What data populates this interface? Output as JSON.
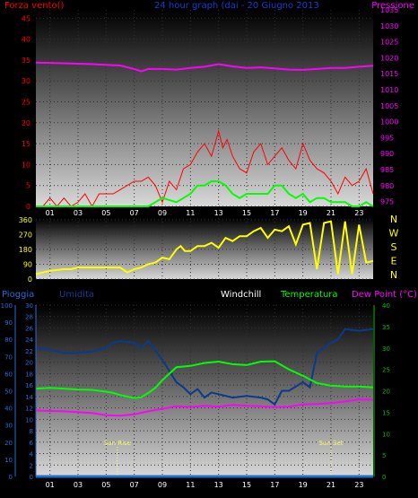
{
  "colors": {
    "wind": "#ff0000",
    "gust": "#ff0000",
    "windAvg": "#00ff00",
    "pressure": "#ff00ff",
    "direction": "#ffff00",
    "rain": "#1e6fd0",
    "humidity": "#0a3a8a",
    "windchill": "#ffffff",
    "temperature": "#00ff00",
    "dewpoint": "#ff00ff",
    "axisBlue": "#2a6bd6",
    "axisGreen": "#00c000",
    "grid": "#303030"
  },
  "chart_data": [
    {
      "type": "line",
      "title": "24 hour graph (dai - 20 Giugno 2013",
      "left_label": "Forza vento()",
      "right_label": "Pressione",
      "x_ticks": [
        "01",
        "03",
        "05",
        "07",
        "09",
        "11",
        "13",
        "15",
        "17",
        "19",
        "21",
        "23"
      ],
      "xlim": [
        0,
        24
      ],
      "y_left_ticks": [
        0,
        5,
        10,
        15,
        20,
        25,
        30,
        35,
        40,
        45
      ],
      "y_left_lim": [
        0,
        47
      ],
      "y_right_ticks": [
        975,
        980,
        985,
        990,
        995,
        1000,
        1005,
        1010,
        1015,
        1020,
        1025,
        1030,
        1035
      ],
      "y_right_lim": [
        973.5,
        1035
      ],
      "series": [
        {
          "role": "gust",
          "x": [
            0.5,
            1,
            1.5,
            2,
            2.5,
            3,
            3.5,
            4,
            4.5,
            5,
            5.5,
            6,
            6.5,
            7,
            7.5,
            8,
            8.5,
            9,
            9.5,
            10,
            10.5,
            11,
            11.5,
            12,
            12.5,
            13,
            13.3,
            13.6,
            14,
            14.5,
            15,
            15.5,
            16,
            16.5,
            17,
            17.5,
            18,
            18.5,
            19,
            19.5,
            20,
            20.5,
            21,
            21.5,
            22,
            22.5,
            23,
            23.5,
            24
          ],
          "y": [
            0,
            2,
            0,
            2,
            0,
            1,
            3,
            0,
            3,
            3,
            3,
            4,
            5,
            6,
            6,
            7,
            5,
            1,
            6,
            4,
            9,
            10,
            13,
            15,
            12,
            18,
            14,
            16,
            12,
            9,
            8,
            13,
            15,
            10,
            12,
            14,
            11,
            9,
            15,
            11,
            9,
            8,
            6,
            3,
            7,
            5,
            6,
            9,
            3
          ]
        },
        {
          "role": "wind-average",
          "x": [
            0,
            6,
            7,
            8,
            9,
            10,
            10.5,
            11,
            11.5,
            12,
            12.5,
            13,
            13.5,
            14,
            14.5,
            15,
            15.5,
            16,
            16.5,
            17,
            17.5,
            18,
            18.5,
            19,
            19.5,
            20,
            20.5,
            21,
            21.5,
            22,
            22.5,
            23,
            23.5,
            24
          ],
          "y": [
            0,
            0,
            0,
            0,
            2,
            1,
            2,
            3,
            5,
            5,
            6,
            6,
            5,
            3,
            2,
            3,
            3,
            3,
            3,
            5,
            5,
            3,
            2,
            3,
            1,
            2,
            2,
            1,
            1,
            1,
            0,
            0,
            1,
            0
          ]
        },
        {
          "role": "pressure",
          "x": [
            0,
            2,
            4,
            6,
            7,
            7.5,
            8,
            9,
            10,
            11,
            12,
            13,
            14,
            15,
            16,
            17,
            18,
            19,
            20,
            21,
            22,
            23,
            24
          ],
          "y": [
            1018.5,
            1018.3,
            1018.0,
            1017.6,
            1016.5,
            1015.8,
            1016.5,
            1016.5,
            1016.3,
            1016.8,
            1017.2,
            1018.0,
            1017.3,
            1016.8,
            1017.0,
            1016.7,
            1016.3,
            1016.2,
            1016.5,
            1016.8,
            1016.8,
            1017.2,
            1017.5
          ]
        }
      ]
    },
    {
      "type": "line",
      "x_ticks": [
        "01",
        "03",
        "05",
        "07",
        "09",
        "11",
        "13",
        "15",
        "17",
        "19",
        "21",
        "23"
      ],
      "xlim": [
        0,
        24
      ],
      "y_left_ticks": [
        0,
        90,
        180,
        270,
        360
      ],
      "y_left_lim": [
        0,
        370
      ],
      "y_right_ticks": [
        "N",
        "W",
        "S",
        "E",
        "N"
      ],
      "series": [
        {
          "role": "direction",
          "x": [
            0,
            1,
            2,
            2.5,
            3,
            4,
            5,
            6,
            6.5,
            7,
            7.5,
            8,
            8.5,
            9,
            9.5,
            10,
            10.3,
            10.6,
            11,
            11.5,
            12,
            12.5,
            13,
            13.5,
            14,
            14.5,
            15,
            15.5,
            16,
            16.5,
            17,
            17.5,
            18,
            18.5,
            19,
            19.5,
            20,
            20.5,
            21,
            21.5,
            22,
            22.5,
            23,
            23.5,
            24
          ],
          "y": [
            30,
            50,
            60,
            60,
            70,
            70,
            70,
            70,
            40,
            60,
            70,
            90,
            100,
            130,
            120,
            180,
            200,
            170,
            170,
            200,
            200,
            220,
            190,
            250,
            230,
            260,
            260,
            290,
            310,
            250,
            300,
            290,
            320,
            210,
            330,
            340,
            60,
            340,
            350,
            30,
            350,
            30,
            330,
            100,
            110
          ]
        }
      ]
    },
    {
      "type": "line",
      "labels": [
        "Pioggia",
        "Umidita",
        "Windchill",
        "Temperatura",
        "Dew Point (°C)"
      ],
      "x_ticks": [
        "01",
        "03",
        "05",
        "07",
        "09",
        "11",
        "13",
        "15",
        "17",
        "19",
        "21",
        "23"
      ],
      "xlim": [
        0,
        24
      ],
      "y_rain_ticks": [
        0,
        10,
        20,
        30,
        40,
        50,
        60,
        70,
        80,
        90,
        100
      ],
      "y_rain_lim": [
        0,
        100
      ],
      "y_hum_ticks": [
        0,
        2,
        4,
        6,
        8,
        10,
        12,
        14,
        16,
        18,
        20,
        22,
        24,
        26,
        28,
        30
      ],
      "y_hum_lim": [
        0,
        30
      ],
      "y_temp_ticks": [
        0,
        5,
        10,
        15,
        20,
        25,
        30,
        35,
        40
      ],
      "y_temp_lim": [
        0,
        40
      ],
      "annotations": [
        {
          "label": "Sun Rise",
          "x": 5.8
        },
        {
          "label": "Sun Set",
          "x": 21.0
        }
      ],
      "series": [
        {
          "role": "rain",
          "x": [
            0,
            24
          ],
          "y": [
            0,
            0
          ]
        },
        {
          "role": "humidity",
          "x": [
            0,
            1,
            2,
            3,
            4,
            5,
            5.5,
            6,
            7,
            7.5,
            8,
            9,
            10,
            10.5,
            11,
            11.5,
            12,
            12.5,
            13,
            14,
            15,
            16,
            16.5,
            17,
            17.5,
            18,
            19,
            19.5,
            20,
            21,
            21.5,
            22,
            23,
            24
          ],
          "y": [
            75,
            74,
            72,
            72,
            73,
            75,
            78,
            79,
            78,
            75,
            79,
            68,
            55,
            52,
            48,
            51,
            46,
            49,
            48,
            46,
            47,
            46,
            45,
            42,
            50,
            50,
            55,
            52,
            72,
            78,
            80,
            86,
            85,
            86
          ]
        },
        {
          "role": "temperature",
          "x": [
            0,
            1,
            2,
            3,
            4,
            5,
            5.5,
            6,
            7,
            7.5,
            8,
            8.5,
            9,
            9.5,
            10,
            11,
            12,
            13,
            14,
            15,
            16,
            17,
            18,
            19,
            20,
            21,
            22,
            23,
            24
          ],
          "y": [
            20.5,
            20.7,
            20.5,
            20.3,
            20.2,
            19.8,
            19.5,
            19.0,
            18.3,
            18.5,
            19.5,
            20.7,
            22.5,
            24.0,
            25.5,
            25.8,
            26.5,
            26.8,
            26.2,
            26.0,
            26.8,
            26.9,
            25.0,
            23.5,
            21.8,
            21.2,
            21.0,
            21.0,
            20.8
          ]
        },
        {
          "role": "dewpoint",
          "x": [
            0,
            2,
            4,
            5,
            6,
            7,
            8,
            9,
            10,
            11,
            12,
            13,
            14,
            15,
            16,
            17,
            18,
            19,
            20,
            21,
            22,
            23,
            24
          ],
          "y": [
            15.4,
            15.2,
            14.8,
            14.3,
            14.2,
            14.5,
            15.2,
            15.8,
            16.4,
            16.2,
            16.5,
            16.3,
            16.7,
            16.5,
            16.4,
            16.2,
            16.3,
            16.8,
            16.9,
            17.1,
            17.5,
            18.0,
            17.9
          ]
        }
      ]
    }
  ]
}
